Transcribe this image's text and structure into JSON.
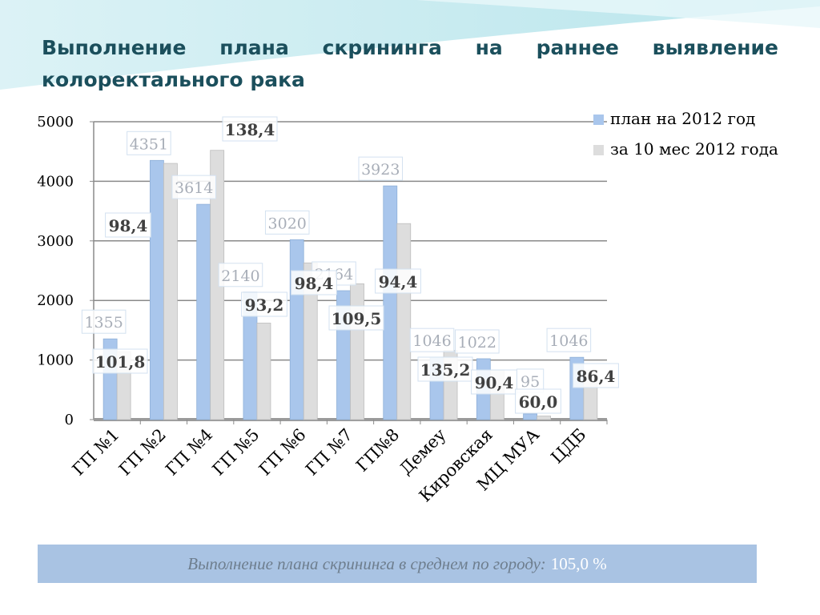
{
  "slide": {
    "title": "Выполнение плана скрининга на раннее выявление колоректального рака",
    "footer_label": "Выполнение плана скрининга в среднем по городу:",
    "footer_value": "105,0 %"
  },
  "colors": {
    "plan": "#a9c6ec",
    "actual": "#dddddd",
    "title": "#1b4f5c",
    "footer": "#a9c3e3"
  },
  "chart_data": {
    "type": "bar",
    "title": "",
    "xlabel": "",
    "ylabel": "",
    "ylim": [
      0,
      5000
    ],
    "yticks": [
      0,
      1000,
      2000,
      3000,
      4000,
      5000
    ],
    "grid": true,
    "legend_position": "top-right",
    "categories": [
      "ГП №1",
      "ГП №2",
      "ГП №4",
      "ГП №5",
      "ГП №6",
      "ГП №7",
      "ГП№8",
      "Демеу",
      "Кировская",
      "МЦ МУА",
      "ЦДБ"
    ],
    "series": [
      {
        "name": "план на 2012 год",
        "values": [
          1355,
          4351,
          3614,
          2140,
          3020,
          2164,
          3923,
          1046,
          1022,
          95,
          1046
        ]
      },
      {
        "name": "за 10 мес 2012 года",
        "values": [
          1140,
          4300,
          4520,
          1620,
          2630,
          2280,
          3290,
          1160,
          830,
          60,
          830
        ]
      }
    ],
    "plan_labels": [
      "1355",
      "4351",
      "3614",
      "2140",
      "3020",
      "2164",
      "3923",
      "1046",
      "1022",
      "95",
      "1046"
    ],
    "percent_labels": [
      "101,8",
      "98,4",
      "138,4",
      "93,2",
      "98,4",
      "109,5",
      "94,4",
      "135,2",
      "90,4",
      "60,0",
      "86,4"
    ]
  }
}
